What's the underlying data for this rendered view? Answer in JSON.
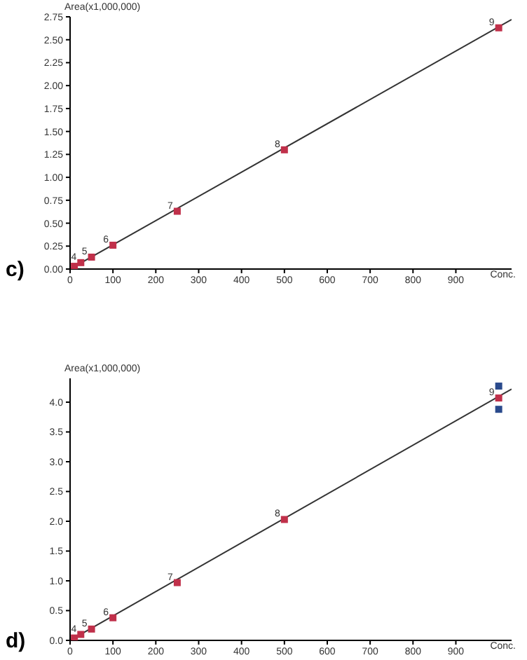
{
  "chart_data": [
    {
      "type": "scatter",
      "ylabel": "Area(x1,000,000)",
      "xlabel": "Conc.",
      "marker": "square",
      "grid": false,
      "xlim": [
        0,
        1030
      ],
      "xticks": [
        0,
        100,
        200,
        300,
        400,
        500,
        600,
        700,
        800,
        900
      ],
      "ylim": [
        0,
        2.75
      ],
      "yticks": [
        {
          "value": 0,
          "label": "0.00"
        },
        0.25,
        {
          "value": 0.5,
          "label": "0.50"
        },
        0.75,
        {
          "value": 1,
          "label": "1.00"
        },
        1.25,
        {
          "value": 1.5,
          "label": "1.50"
        },
        1.75,
        {
          "value": 2,
          "label": "2.00"
        },
        2.25,
        {
          "value": 2.5,
          "label": "2.50"
        },
        2.75
      ],
      "series": [
        {
          "type": "line",
          "marker": "none",
          "color": "#333333",
          "x": [
            0,
            1030
          ],
          "values": [
            0,
            2.72
          ]
        },
        {
          "color": "#c0304a",
          "x": [
            10,
            25,
            50,
            100,
            250,
            500,
            1000
          ],
          "values": [
            0.03,
            0.07,
            0.13,
            0.26,
            0.63,
            1.3,
            2.63
          ]
        }
      ],
      "annotations": [
        "c)",
        {
          "text": "4",
          "x": 25,
          "y": 0.07
        },
        {
          "text": "5",
          "x": 50,
          "y": 0.13
        },
        {
          "text": "6",
          "x": 100,
          "y": 0.26
        },
        {
          "text": "7",
          "x": 250,
          "y": 0.63
        },
        {
          "text": "8",
          "x": 500,
          "y": 1.3
        },
        {
          "text": "9",
          "x": 1000,
          "y": 2.63
        }
      ]
    },
    {
      "type": "scatter",
      "ylabel": "Area(x1,000,000)",
      "xlabel": "Conc.",
      "marker": "square",
      "grid": false,
      "xlim": [
        0,
        1030
      ],
      "xticks": [
        0,
        100,
        200,
        300,
        400,
        500,
        600,
        700,
        800,
        900
      ],
      "ylim": [
        0,
        4.4
      ],
      "yticks": [
        {
          "value": 0,
          "label": "0.0"
        },
        0.5,
        {
          "value": 1,
          "label": "1.0"
        },
        1.5,
        {
          "value": 2,
          "label": "2.0"
        },
        2.5,
        {
          "value": 3,
          "label": "3.0"
        },
        3.5,
        {
          "value": 4,
          "label": "4.0"
        }
      ],
      "series": [
        {
          "type": "line",
          "marker": "none",
          "color": "#333333",
          "x": [
            0,
            1030
          ],
          "values": [
            0,
            4.22
          ]
        },
        {
          "color": "#2a4a8c",
          "x": [
            1000,
            1000
          ],
          "values": [
            4.27,
            3.88
          ]
        },
        {
          "color": "#c0304a",
          "x": [
            10,
            25,
            50,
            100,
            250,
            500,
            1000
          ],
          "values": [
            0.04,
            0.1,
            0.19,
            0.38,
            0.97,
            2.03,
            4.07
          ]
        }
      ],
      "annotations": [
        "d)",
        {
          "text": "4",
          "x": 25,
          "y": 0.1
        },
        {
          "text": "5",
          "x": 50,
          "y": 0.19
        },
        {
          "text": "6",
          "x": 100,
          "y": 0.38
        },
        {
          "text": "7",
          "x": 250,
          "y": 0.97
        },
        {
          "text": "8",
          "x": 500,
          "y": 2.03
        },
        {
          "text": "9",
          "x": 1000,
          "y": 4.07
        }
      ]
    }
  ]
}
